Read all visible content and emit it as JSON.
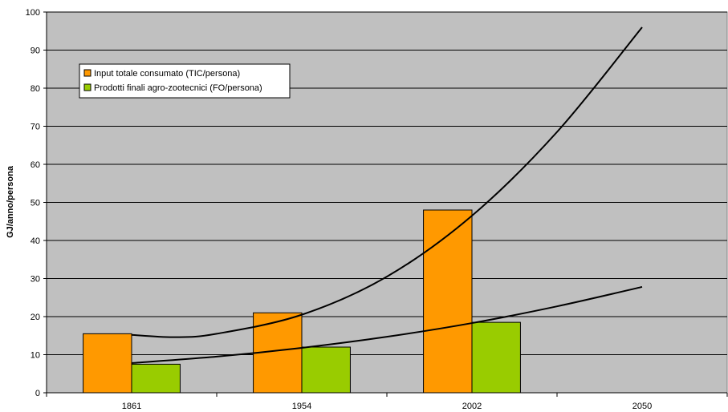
{
  "chart_data": {
    "type": "bar",
    "title": "",
    "xlabel": "",
    "ylabel": "GJ/anno/persona",
    "ylim": [
      0,
      100
    ],
    "yticks": [
      0,
      10,
      20,
      30,
      40,
      50,
      60,
      70,
      80,
      90,
      100
    ],
    "categories": [
      "1861",
      "1954",
      "2002",
      "2050"
    ],
    "grid": true,
    "legend_position": "top-left",
    "series": [
      {
        "name": "Input totale consumato (TIC/persona)",
        "values": [
          15.5,
          21,
          48,
          null
        ],
        "color": "#ff9900"
      },
      {
        "name": "Prodotti finali agro-zootecnici (FO/persona)",
        "values": [
          7.5,
          12,
          18.5,
          null
        ],
        "color": "#99cc00"
      }
    ],
    "trendlines": [
      {
        "series": "Input totale consumato (TIC/persona)",
        "kind": "polynomial",
        "x": [
          0,
          0.25,
          0.5,
          1,
          1.5,
          2,
          2.5,
          3
        ],
        "y": [
          15.2,
          14.6,
          15.5,
          20.5,
          30.5,
          46.5,
          68.5,
          96
        ]
      },
      {
        "series": "Prodotti finali agro-zootecnici (FO/persona)",
        "kind": "exponential",
        "x": [
          0,
          0.5,
          1,
          1.5,
          2,
          2.5,
          3
        ],
        "y": [
          7.8,
          9.5,
          11.8,
          14.7,
          18.3,
          22.7,
          27.8
        ]
      }
    ],
    "plot_background": "#c0c0c0",
    "gridline_color": "#000000",
    "trendline_color": "#000000"
  }
}
